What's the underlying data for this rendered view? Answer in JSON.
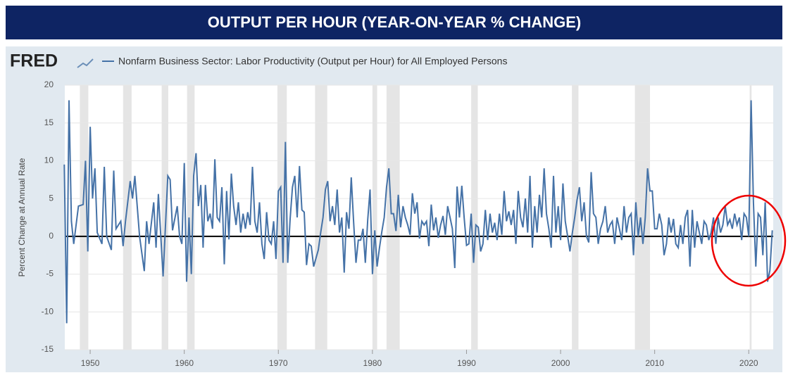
{
  "chart_data": {
    "type": "line",
    "header": "OUTPUT PER HOUR (YEAR-ON-YEAR % CHANGE)",
    "logo": "FRED",
    "y_label": "Percent Change at Annual Rate",
    "xlim": [
      1947.3,
      2022.6
    ],
    "xticks": [
      1950,
      1960,
      1970,
      1980,
      1990,
      2000,
      2010,
      2020
    ],
    "ylim": [
      -15,
      20
    ],
    "yticks": [
      -15,
      -10,
      -5,
      0,
      5,
      10,
      15,
      20
    ],
    "grid": true,
    "recessions": [
      [
        1948.9,
        1949.8
      ],
      [
        1953.5,
        1954.4
      ],
      [
        1957.6,
        1958.3
      ],
      [
        1960.3,
        1961.1
      ],
      [
        1969.9,
        1970.9
      ],
      [
        1973.9,
        1975.2
      ],
      [
        1980.0,
        1980.5
      ],
      [
        1981.5,
        1982.9
      ],
      [
        1990.5,
        1991.2
      ],
      [
        2001.2,
        2001.9
      ],
      [
        2007.9,
        2009.5
      ],
      [
        2020.1,
        2020.3
      ]
    ],
    "x": [
      1947.25,
      1947.5,
      1947.75,
      1948,
      1948.25,
      1948.75,
      1949.25,
      1949.5,
      1949.75,
      1950,
      1950.25,
      1950.5,
      1950.75,
      1951.25,
      1951.5,
      1951.75,
      1952.25,
      1952.5,
      1952.75,
      1953.25,
      1953.5,
      1953.75,
      1954.25,
      1954.5,
      1954.75,
      1955.25,
      1955.75,
      1956,
      1956.25,
      1956.75,
      1957,
      1957.25,
      1957.75,
      1958.25,
      1958.5,
      1958.75,
      1959.25,
      1959.5,
      1959.75,
      1960,
      1960.25,
      1960.5,
      1960.75,
      1961,
      1961.25,
      1961.5,
      1961.75,
      1962,
      1962.25,
      1962.5,
      1962.75,
      1963,
      1963.25,
      1963.5,
      1963.75,
      1964,
      1964.25,
      1964.5,
      1964.75,
      1965,
      1965.25,
      1965.5,
      1965.75,
      1966,
      1966.25,
      1966.5,
      1966.75,
      1967,
      1967.25,
      1967.5,
      1967.75,
      1968,
      1968.25,
      1968.5,
      1968.75,
      1969,
      1969.25,
      1969.5,
      1969.75,
      1970,
      1970.25,
      1970.5,
      1970.75,
      1971,
      1971.25,
      1971.5,
      1971.75,
      1972,
      1972.25,
      1972.5,
      1972.75,
      1973,
      1973.25,
      1973.5,
      1973.75,
      1974.25,
      1974.5,
      1974.75,
      1975,
      1975.25,
      1975.5,
      1975.75,
      1976,
      1976.25,
      1976.5,
      1976.75,
      1977,
      1977.25,
      1977.5,
      1977.75,
      1978,
      1978.25,
      1978.5,
      1978.75,
      1979,
      1979.25,
      1979.5,
      1979.75,
      1980,
      1980.25,
      1980.5,
      1980.75,
      1981,
      1981.25,
      1981.5,
      1981.75,
      1982,
      1982.25,
      1982.5,
      1982.75,
      1983,
      1983.25,
      1983.5,
      1983.75,
      1984,
      1984.25,
      1984.5,
      1984.75,
      1985,
      1985.25,
      1985.5,
      1985.75,
      1986,
      1986.25,
      1986.5,
      1986.75,
      1987,
      1987.25,
      1987.5,
      1987.75,
      1988,
      1988.25,
      1988.5,
      1988.75,
      1989,
      1989.25,
      1989.5,
      1989.75,
      1990,
      1990.25,
      1990.5,
      1990.75,
      1991,
      1991.25,
      1991.5,
      1991.75,
      1992,
      1992.25,
      1992.5,
      1992.75,
      1993,
      1993.25,
      1993.5,
      1993.75,
      1994,
      1994.25,
      1994.5,
      1994.75,
      1995,
      1995.25,
      1995.5,
      1995.75,
      1996,
      1996.25,
      1996.5,
      1996.75,
      1997,
      1997.25,
      1997.5,
      1997.75,
      1998,
      1998.25,
      1998.5,
      1998.75,
      1999,
      1999.25,
      1999.5,
      1999.75,
      2000,
      2000.25,
      2000.5,
      2000.75,
      2001,
      2001.25,
      2001.5,
      2001.75,
      2002,
      2002.25,
      2002.5,
      2002.75,
      2003,
      2003.25,
      2003.5,
      2003.75,
      2004,
      2004.25,
      2004.5,
      2004.75,
      2005,
      2005.25,
      2005.5,
      2005.75,
      2006,
      2006.25,
      2006.5,
      2006.75,
      2007,
      2007.25,
      2007.5,
      2007.75,
      2008,
      2008.25,
      2008.5,
      2008.75,
      2009,
      2009.25,
      2009.5,
      2009.75,
      2010,
      2010.25,
      2010.5,
      2010.75,
      2011,
      2011.25,
      2011.5,
      2011.75,
      2012,
      2012.25,
      2012.5,
      2012.75,
      2013,
      2013.25,
      2013.5,
      2013.75,
      2014,
      2014.25,
      2014.5,
      2014.75,
      2015,
      2015.25,
      2015.5,
      2015.75,
      2016,
      2016.25,
      2016.5,
      2016.75,
      2017,
      2017.25,
      2017.5,
      2017.75,
      2018,
      2018.25,
      2018.5,
      2018.75,
      2019,
      2019.25,
      2019.5,
      2019.75,
      2020,
      2020.25,
      2020.5,
      2020.75,
      2021,
      2021.25,
      2021.5,
      2021.75,
      2022,
      2022.25,
      2022.5
    ],
    "series": [
      {
        "name": "Nonfarm Business Sector: Labor Productivity (Output per Hour) for All Employed Persons",
        "color": "#4572a7",
        "values": [
          9.5,
          -11.5,
          18,
          2,
          -1,
          4,
          4.2,
          10,
          -2,
          14.5,
          5,
          9,
          0.5,
          -1,
          9.2,
          0,
          -1.8,
          8.7,
          1,
          2,
          -1.3,
          2,
          7.3,
          5,
          8,
          0,
          -4.6,
          2,
          -1,
          4.5,
          -1.5,
          5.6,
          -5.3,
          8,
          7.5,
          0.8,
          4,
          0,
          -1,
          9.7,
          -6,
          2.5,
          -5,
          8,
          11,
          4,
          6.8,
          -1.5,
          6.8,
          2,
          3,
          1,
          10.2,
          2.5,
          2,
          6.5,
          -3.7,
          6,
          -0.4,
          8.3,
          4,
          1.5,
          4.5,
          0.5,
          3,
          1,
          3.2,
          1.5,
          9.2,
          2,
          0.5,
          4.5,
          -1,
          -3,
          3.2,
          -0.5,
          -1,
          2,
          -3,
          6,
          6.5,
          -3.5,
          12.5,
          -3.5,
          2.3,
          6.5,
          8,
          2.5,
          9.3,
          3.5,
          3.2,
          -3.8,
          -1,
          -1.3,
          -4,
          -1.8,
          0.5,
          2.5,
          6.2,
          7.3,
          2,
          4,
          1.5,
          6.2,
          0.5,
          2.5,
          -4.8,
          3.2,
          1,
          7.8,
          2,
          -3.5,
          -0.5,
          -0.5,
          1,
          -3.5,
          2.2,
          6.2,
          -5,
          0.8,
          -4,
          -1.5,
          0.6,
          2.5,
          6.5,
          9,
          3,
          3,
          0.7,
          5.5,
          1.2,
          4,
          2.5,
          1.5,
          0.2,
          5.7,
          3,
          4.5,
          -0.3,
          2,
          1.5,
          2,
          -1.3,
          4.2,
          0.8,
          2.5,
          -0.2,
          1.5,
          2.7,
          0.2,
          4,
          2.5,
          1,
          -4.2,
          6.6,
          2.5,
          6.7,
          2.5,
          -1.2,
          -1,
          3,
          -3.5,
          1.5,
          1.2,
          -2,
          -1,
          3.5,
          -0.5,
          3,
          0.5,
          1.8,
          -0.5,
          3,
          0.2,
          6,
          2,
          3.3,
          1.5,
          3.5,
          -1,
          6,
          2.5,
          1.2,
          5,
          0.5,
          8,
          -1.5,
          4,
          0.5,
          5.5,
          2.5,
          9,
          3,
          1,
          -1.5,
          8,
          0.5,
          4,
          -0.5,
          7,
          2,
          0,
          -2,
          0.5,
          2.5,
          4.8,
          6.5,
          2,
          4.5,
          0,
          -0.8,
          8.5,
          3,
          2.5,
          -1,
          1,
          2,
          4,
          0.5,
          1.5,
          2,
          -1,
          2.5,
          1,
          -0.5,
          4,
          0.5,
          2.5,
          3,
          -2.5,
          4.5,
          0,
          2.5,
          -1,
          2.5,
          9,
          6,
          6,
          1,
          1,
          3,
          1.5,
          -2.5,
          -1,
          2.5,
          0.5,
          2.3,
          -1,
          -1.5,
          1.5,
          -1,
          2.5,
          3.5,
          -4,
          3.5,
          -1.5,
          2,
          0.5,
          -1,
          2,
          1.5,
          -0.5,
          0.5,
          2.5,
          -1,
          2.5,
          0.5,
          1.5,
          4,
          1.5,
          2.2,
          1,
          3,
          1.5,
          2.5,
          -0.5,
          3,
          2.5,
          0,
          18,
          4.5,
          -4,
          3,
          2.5,
          -2.5,
          4.5,
          -6,
          -4.5,
          0.8
        ]
      }
    ]
  }
}
